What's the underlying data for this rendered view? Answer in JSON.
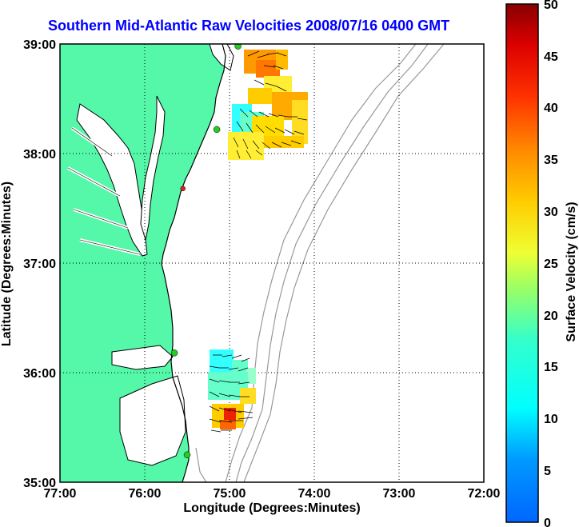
{
  "title": "Southern Mid-Atlantic Raw Velocities 2008/07/16 0400 GMT",
  "map": {
    "x_ticks": [
      "77:00",
      "76:00",
      "75:00",
      "74:00",
      "73:00",
      "72:00"
    ],
    "y_ticks": [
      "39:00",
      "38:00",
      "37:00",
      "36:00",
      "35:00"
    ],
    "xlabel": "Longitude (Degrees:Minutes)",
    "ylabel": "Latitude (Degrees:Minutes)",
    "lon_range": [
      -77,
      -72
    ],
    "lat_range": [
      35,
      39
    ],
    "land_color": "#55f7a8",
    "coast_color": "#000000",
    "bathymetry_color": "#999999",
    "grid": "dotted",
    "station_color": "#22cc22",
    "station_marker_offline_color": "#dd2222"
  },
  "colorbar": {
    "label": "Surface Velocity (cm/s)",
    "ticks": [
      "50",
      "45",
      "40",
      "35",
      "30",
      "25",
      "20",
      "15",
      "10",
      "5",
      "0"
    ],
    "range": [
      0,
      50
    ],
    "colormap": "jet"
  },
  "stations": [
    {
      "lon": -74.9,
      "lat": 38.98,
      "status": "active"
    },
    {
      "lon": -75.15,
      "lat": 38.22,
      "status": "active"
    },
    {
      "lon": -75.55,
      "lat": 37.68,
      "status": "offline"
    },
    {
      "lon": -75.65,
      "lat": 36.18,
      "status": "active"
    },
    {
      "lon": -75.5,
      "lat": 35.25,
      "status": "active"
    }
  ]
}
